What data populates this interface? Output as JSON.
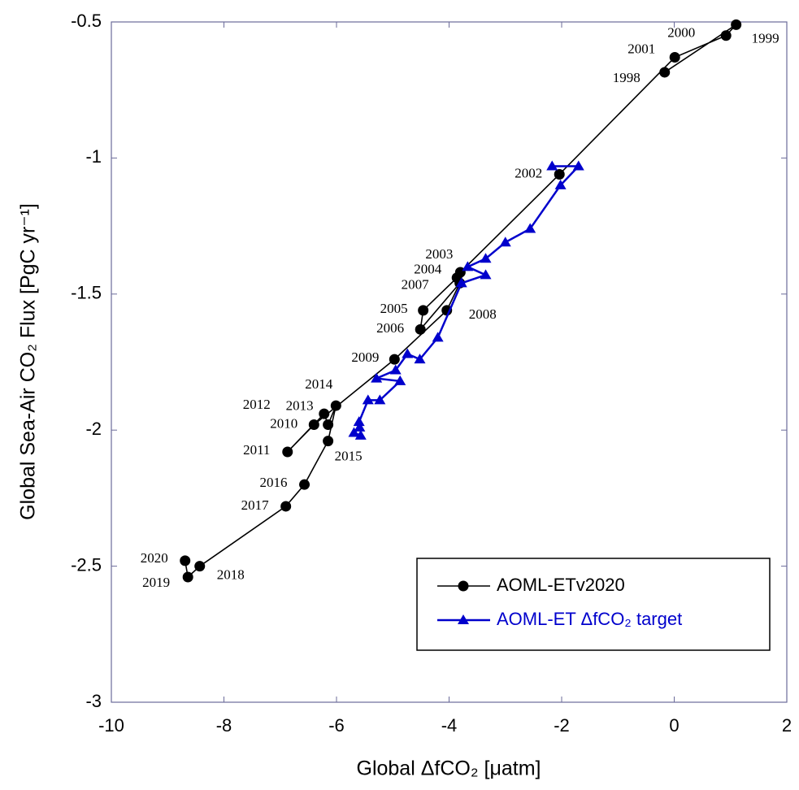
{
  "chart_data": {
    "type": "line",
    "x_label": "Global ΔfCO₂ [μatm]",
    "y_label": "Global Sea-Air CO₂ Flux [PgC yr⁻¹]",
    "xlim": [
      -10,
      2
    ],
    "xticks": [
      -10,
      -8,
      -6,
      -4,
      -2,
      0,
      2
    ],
    "ylim": [
      -3,
      -0.5
    ],
    "yticks": [
      -0.5,
      -1,
      -1.5,
      -2,
      -2.5,
      -3
    ],
    "legend": "lower right",
    "series": [
      {
        "name": "AOML-ETv2020",
        "color": "#000000",
        "marker": "circle",
        "x": [
          -0.17,
          1.1,
          0.92,
          0.01,
          -2.04,
          -3.8,
          -3.86,
          -4.46,
          -4.51,
          -3.81,
          -4.04,
          -4.97,
          -6.4,
          -6.87,
          -6.22,
          -6.15,
          -6.01,
          -6.15,
          -6.57,
          -6.9,
          -8.43,
          -8.64,
          -8.69
        ],
        "values": [
          -0.685,
          -0.51,
          -0.55,
          -0.63,
          -1.06,
          -1.42,
          -1.44,
          -1.56,
          -1.63,
          -1.46,
          -1.56,
          -1.74,
          -1.98,
          -2.08,
          -1.94,
          -1.98,
          -1.91,
          -2.04,
          -2.2,
          -2.28,
          -2.5,
          -2.54,
          -2.48
        ],
        "point_labels": [
          "1998",
          "1999",
          "2000",
          "2001",
          "2002",
          "2003",
          "2004",
          "2005",
          "2006",
          "2007",
          "2008",
          "2009",
          "2010",
          "2011",
          "2012",
          "2013",
          "2014",
          "2015",
          "2016",
          "2017",
          "2018",
          "2019",
          "2020"
        ]
      },
      {
        "name": "AOML-ET ΔfCO₂ target",
        "color": "#0000cc",
        "marker": "triangle",
        "x": [
          -2.17,
          -1.7,
          -2.02,
          -2.56,
          -3.0,
          -3.35,
          -3.67,
          -3.35,
          -3.78,
          -4.2,
          -4.52,
          -4.74,
          -4.95,
          -5.29,
          -4.87,
          -5.23,
          -5.44,
          -5.6,
          -5.59,
          -5.69,
          -5.57
        ],
        "values": [
          -1.03,
          -1.03,
          -1.1,
          -1.26,
          -1.31,
          -1.37,
          -1.4,
          -1.43,
          -1.46,
          -1.66,
          -1.74,
          -1.72,
          -1.78,
          -1.81,
          -1.82,
          -1.89,
          -1.89,
          -1.97,
          -1.99,
          -2.01,
          -2.02
        ]
      }
    ]
  }
}
